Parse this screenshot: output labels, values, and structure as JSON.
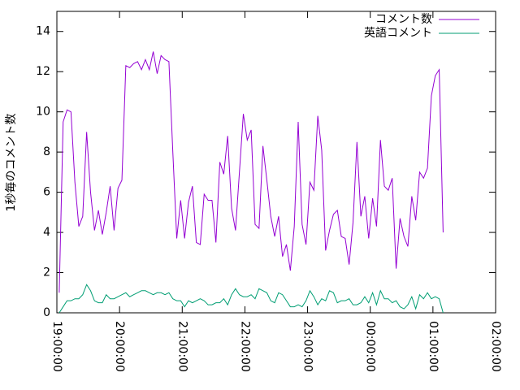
{
  "chart_data": {
    "type": "line",
    "y_label": "1秒毎のコメント数",
    "x": [
      "19:02:15",
      "19:06:00",
      "19:09:45",
      "19:13:30",
      "19:17:15",
      "19:21:00",
      "19:24:45",
      "19:28:30",
      "19:32:15",
      "19:36:00",
      "19:39:45",
      "19:43:30",
      "19:47:15",
      "19:51:00",
      "19:54:45",
      "19:58:30",
      "20:02:15",
      "20:06:00",
      "20:09:45",
      "20:13:30",
      "20:17:15",
      "20:21:00",
      "20:24:45",
      "20:28:30",
      "20:32:15",
      "20:36:00",
      "20:39:45",
      "20:43:30",
      "20:47:15",
      "20:51:00",
      "20:54:45",
      "20:58:30",
      "21:02:15",
      "21:06:00",
      "21:09:45",
      "21:13:30",
      "21:17:15",
      "21:21:00",
      "21:24:45",
      "21:28:30",
      "21:32:15",
      "21:36:00",
      "21:39:45",
      "21:43:30",
      "21:47:15",
      "21:51:00",
      "21:54:45",
      "21:58:30",
      "22:02:15",
      "22:06:00",
      "22:09:45",
      "22:13:30",
      "22:17:15",
      "22:21:00",
      "22:24:45",
      "22:28:30",
      "22:32:15",
      "22:36:00",
      "22:39:45",
      "22:43:30",
      "22:47:15",
      "22:51:00",
      "22:54:45",
      "22:58:30",
      "23:02:15",
      "23:06:00",
      "23:09:45",
      "23:13:30",
      "23:17:15",
      "23:21:00",
      "23:24:45",
      "23:28:30",
      "23:32:15",
      "23:36:00",
      "23:39:45",
      "23:43:30",
      "23:47:15",
      "23:51:00",
      "23:54:45",
      "23:58:30",
      "00:02:15",
      "00:06:00",
      "00:09:45",
      "00:13:30",
      "00:17:15",
      "00:21:00",
      "00:24:45",
      "00:28:30",
      "00:32:15",
      "00:36:00",
      "00:39:45",
      "00:43:30",
      "00:47:15",
      "00:51:00",
      "00:54:45",
      "00:58:30",
      "01:02:15",
      "01:06:00",
      "01:09:45"
    ],
    "series": [
      {
        "name": "コメント数",
        "color": "#9400d3",
        "values": [
          1,
          9.5,
          10.1,
          10,
          6.5,
          4.3,
          4.8,
          9,
          6,
          4.1,
          5.1,
          3.9,
          5,
          6.3,
          4.1,
          6.2,
          6.6,
          12.3,
          12.2,
          12.4,
          12.5,
          12.1,
          12.6,
          12.1,
          13,
          11.9,
          12.8,
          12.6,
          12.5,
          8,
          3.7,
          5.6,
          3.7,
          5.5,
          6.3,
          3.5,
          3.4,
          5.9,
          5.6,
          5.6,
          3.5,
          7.5,
          6.9,
          8.8,
          5.2,
          4.1,
          7,
          9.9,
          8.6,
          9.1,
          4.4,
          4.2,
          8.3,
          6.6,
          4.8,
          3.8,
          4.8,
          2.8,
          3.4,
          2.1,
          4.3,
          9.5,
          4.4,
          3.4,
          6.5,
          6.1,
          9.8,
          8.1,
          3.1,
          4.1,
          4.9,
          5.1,
          3.8,
          3.7,
          2.4,
          4.5,
          8.5,
          4.8,
          5.8,
          3.7,
          5.7,
          4.3,
          8.6,
          6.3,
          6.1,
          6.7,
          2.2,
          4.7,
          3.8,
          3.3,
          5.8,
          4.6,
          7,
          6.7,
          7.2,
          10.8,
          11.8,
          12.1,
          4
        ]
      },
      {
        "name": "英語コメント",
        "color": "#009e73",
        "values": [
          0,
          0.3,
          0.6,
          0.6,
          0.7,
          0.7,
          0.9,
          1.4,
          1.1,
          0.6,
          0.5,
          0.5,
          0.9,
          0.7,
          0.7,
          0.8,
          0.9,
          1.0,
          0.8,
          0.9,
          1.0,
          1.1,
          1.1,
          1.0,
          0.9,
          1.0,
          1.0,
          0.9,
          1.0,
          0.7,
          0.6,
          0.6,
          0.3,
          0.6,
          0.5,
          0.6,
          0.7,
          0.6,
          0.4,
          0.4,
          0.5,
          0.5,
          0.7,
          0.4,
          0.9,
          1.2,
          0.9,
          0.8,
          0.8,
          0.9,
          0.7,
          1.2,
          1.1,
          1.0,
          0.6,
          0.5,
          1.0,
          0.9,
          0.6,
          0.3,
          0.3,
          0.4,
          0.3,
          0.6,
          1.1,
          0.8,
          0.4,
          0.7,
          0.6,
          1.1,
          1.0,
          0.5,
          0.6,
          0.6,
          0.7,
          0.4,
          0.4,
          0.5,
          0.8,
          0.5,
          1.0,
          0.4,
          1.1,
          0.7,
          0.7,
          0.5,
          0.6,
          0.3,
          0.2,
          0.4,
          0.8,
          0.2,
          0.9,
          0.7,
          1.0,
          0.7,
          0.8,
          0.7,
          0
        ]
      }
    ],
    "xlim": [
      "19:00:00",
      "02:00:00"
    ],
    "xticks": [
      "19:00:00",
      "20:00:00",
      "21:00:00",
      "22:00:00",
      "23:00:00",
      "00:00:00",
      "01:00:00",
      "02:00:00"
    ],
    "ylim": [
      0,
      15
    ],
    "yticks": [
      0,
      2,
      4,
      6,
      8,
      10,
      12,
      14
    ],
    "legend": "top-right"
  }
}
